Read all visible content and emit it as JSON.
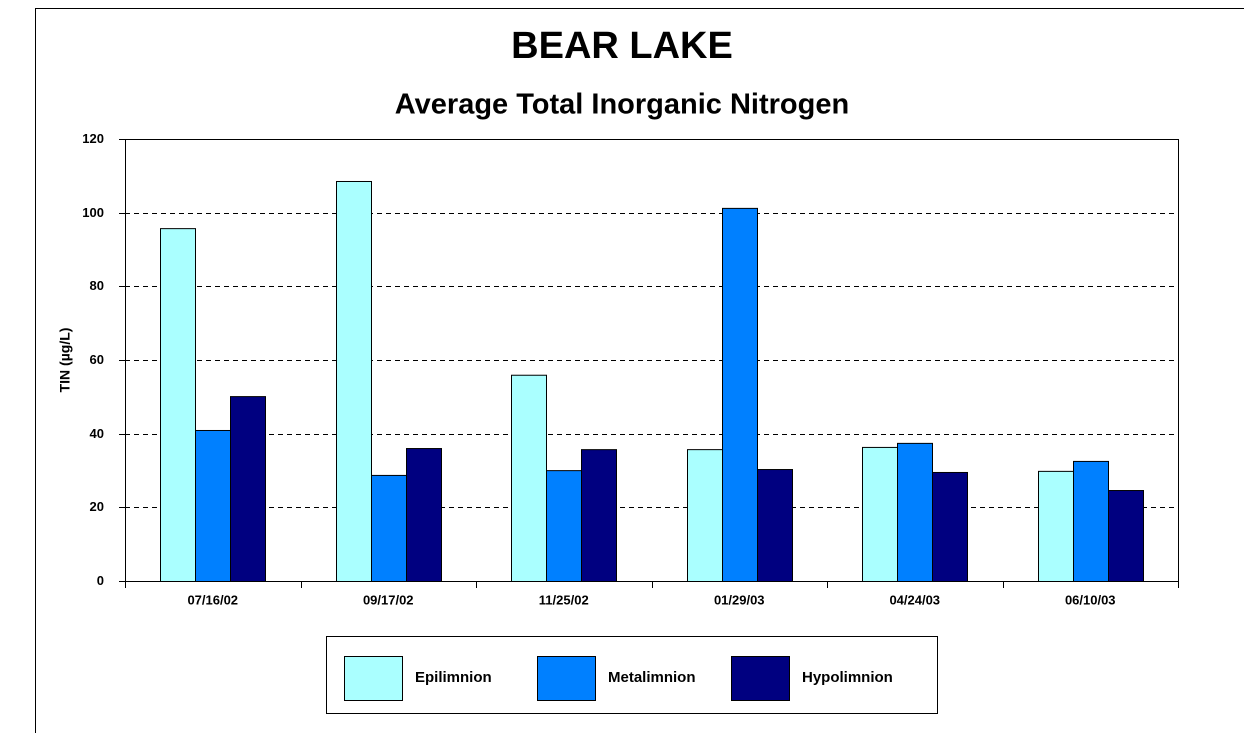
{
  "chart_data": {
    "type": "bar",
    "title": "BEAR LAKE",
    "subtitle": "Average Total Inorganic Nitrogen",
    "y_label": "TIN (µg/L)",
    "categories": [
      "07/16/02",
      "09/17/02",
      "11/25/02",
      "01/29/03",
      "04/24/03",
      "06/10/03"
    ],
    "series": [
      {
        "name": "Epilimnion",
        "color": "#aaffff",
        "values": [
          95.8,
          108.6,
          56,
          35.8,
          36.4,
          29.9
        ]
      },
      {
        "name": "Metalimnion",
        "color": "#0080ff",
        "values": [
          41,
          28.8,
          30.1,
          101.3,
          37.5,
          32.6
        ]
      },
      {
        "name": "Hypolimnion",
        "color": "#000080",
        "values": [
          50.2,
          36.1,
          35.8,
          30.4,
          29.6,
          24.7
        ]
      }
    ],
    "ylim": [
      0,
      120
    ],
    "yticks": [
      0,
      20,
      40,
      60,
      80,
      100,
      120
    ],
    "grid": true,
    "legend": "bottom"
  }
}
